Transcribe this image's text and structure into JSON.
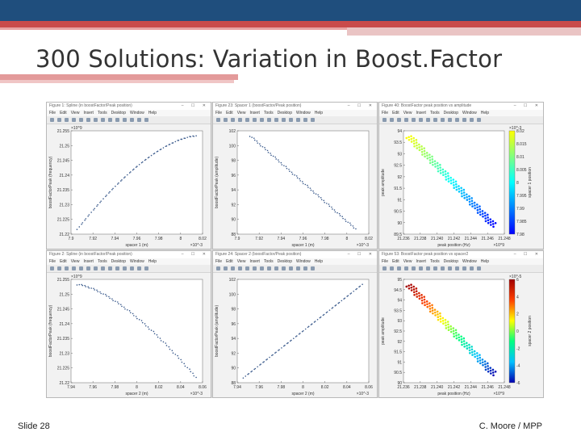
{
  "slide": {
    "title": "300 Solutions: Variation in Boost.Factor",
    "slide_number": "Slide 28",
    "author": "C. Moore / MPP"
  },
  "menu_items": [
    "File",
    "Edit",
    "View",
    "Insert",
    "Tools",
    "Desktop",
    "Window",
    "Help"
  ],
  "window_controls": "– ☐ ✕",
  "windows": [
    {
      "title": "Figure 1: Spline (in boostFactor/Peak position)",
      "yticks": [
        "21.255",
        "21.25",
        "21.245",
        "21.24",
        "21.235",
        "21.23",
        "21.225",
        "21.22"
      ],
      "xticks": [
        "7.9",
        "7.92",
        "7.94",
        "7.96",
        "7.98",
        "8",
        "8.02"
      ],
      "xlabel": "spacer 1 (m)",
      "ylabel": "boostFactorPeak (frequency)",
      "yexp": "×10^9",
      "xexp": "×10^-3"
    },
    {
      "title": "Figure 23: Spacer 1 (boostFactor/Peak position)",
      "yticks": [
        "102",
        "100",
        "98",
        "96",
        "94",
        "92",
        "90",
        "88"
      ],
      "xticks": [
        "7.9",
        "7.92",
        "7.94",
        "7.96",
        "7.98",
        "8",
        "8.02"
      ],
      "xlabel": "spacer 1 (m)",
      "ylabel": "boostFactorPeak (amplitude)",
      "yexp": "",
      "xexp": "×10^-3"
    },
    {
      "title": "Figure 40: BoostFactor peak position vs amplitude",
      "yticks": [
        "94",
        "93.5",
        "93",
        "92.5",
        "92",
        "91.5",
        "91",
        "90.5",
        "90",
        "89.5"
      ],
      "xticks": [
        "21.236",
        "21.238",
        "21.240",
        "21.242",
        "21.244",
        "21.246",
        "21.248"
      ],
      "xlabel": "peak position (Hz)",
      "ylabel": "peak amplitude",
      "yexp": "",
      "xexp": "×10^9",
      "colorbar": {
        "label": "spacer 1 position",
        "ticks": [
          "8.02",
          "8.015",
          "8.01",
          "8.005",
          "8",
          "7.995",
          "7.99",
          "7.985",
          "7.98"
        ],
        "exp": "×10^-3",
        "colors": [
          "#ffff00",
          "#00ffff",
          "#0000ff"
        ]
      }
    },
    {
      "title": "Figure 2: Spline (in boostFactor/Peak position)",
      "yticks": [
        "21.255",
        "21.25",
        "21.245",
        "21.24",
        "21.235",
        "21.23",
        "21.225",
        "21.22"
      ],
      "xticks": [
        "7.94",
        "7.96",
        "7.98",
        "8",
        "8.02",
        "8.04",
        "8.06"
      ],
      "xlabel": "spacer 2 (m)",
      "ylabel": "boostFactorPeak (frequency)",
      "yexp": "×10^9",
      "xexp": "×10^-3"
    },
    {
      "title": "Figure 24: Spacer 2 (boostFactor/Peak position)",
      "yticks": [
        "102",
        "100",
        "98",
        "96",
        "94",
        "92",
        "90",
        "88"
      ],
      "xticks": [
        "7.94",
        "7.96",
        "7.98",
        "8",
        "8.02",
        "8.04",
        "8.06"
      ],
      "xlabel": "spacer 2 (m)",
      "ylabel": "boostFactorPeak (amplitude)",
      "yexp": "",
      "xexp": "×10^-3"
    },
    {
      "title": "Figure 53: BoostFactor peak position vs spacer2",
      "yticks": [
        "95",
        "94.5",
        "94",
        "93.5",
        "93",
        "92.5",
        "92",
        "91.5",
        "91",
        "90.5",
        "90"
      ],
      "xticks": [
        "21.236",
        "21.238",
        "21.240",
        "21.242",
        "21.244",
        "21.246",
        "21.248"
      ],
      "xlabel": "peak position (Hz)",
      "ylabel": "peak amplitude",
      "yexp": "",
      "xexp": "×10^9",
      "colorbar": {
        "label": "spacer 2 position",
        "ticks": [
          "6",
          "4",
          "2",
          "0",
          "-2",
          "-4",
          "-6"
        ],
        "exp": "×10^-5",
        "colors": [
          "#a00000",
          "#ff4000",
          "#ffff00",
          "#00ff80",
          "#00c0ff",
          "#0000b0"
        ]
      }
    }
  ]
}
